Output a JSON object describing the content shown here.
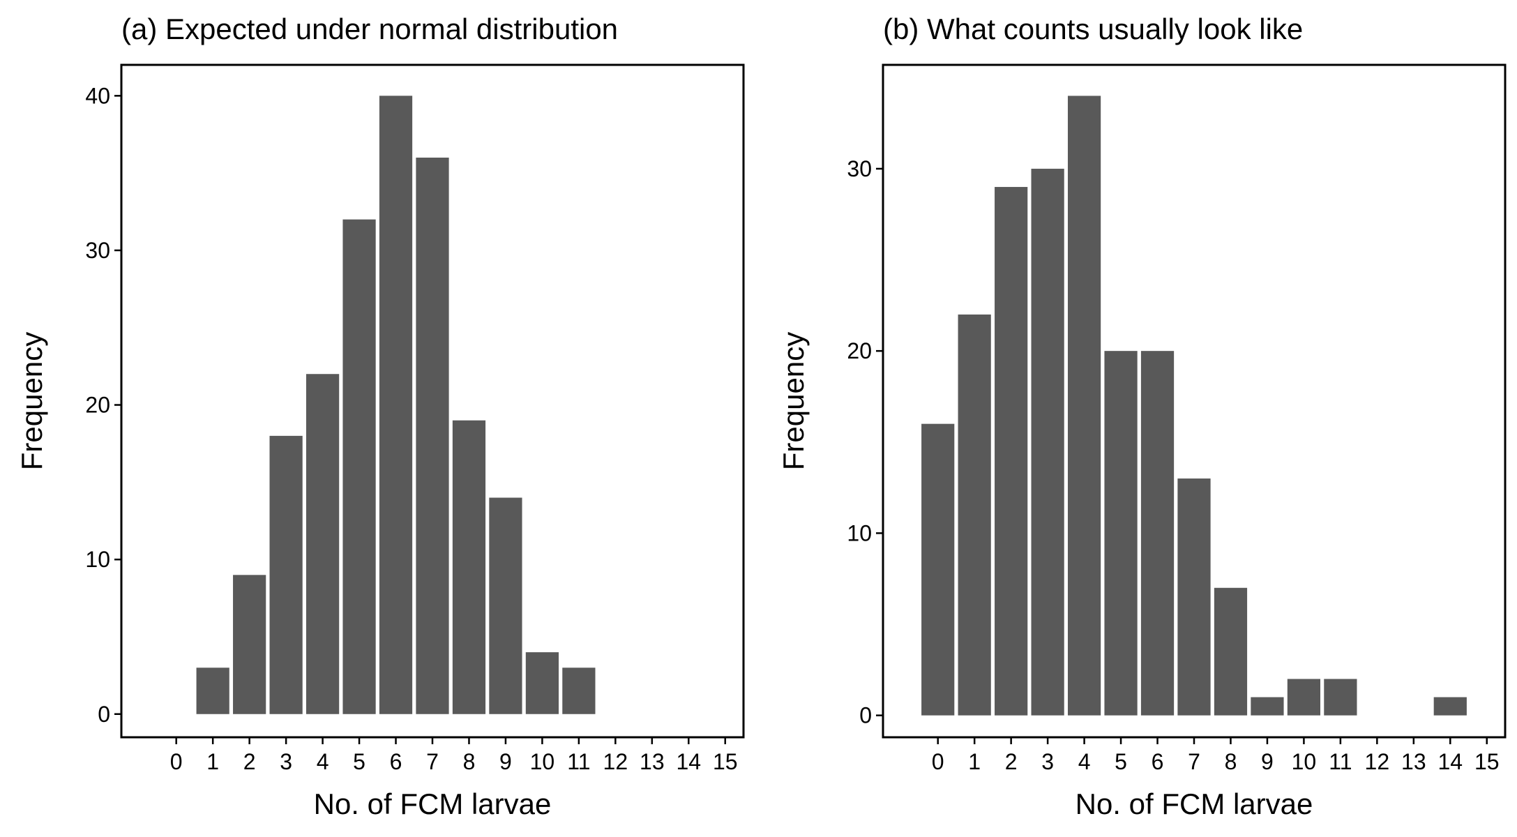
{
  "colors": {
    "bar": "#595959",
    "frame": "#000000",
    "background": "#ffffff"
  },
  "chart_data": [
    {
      "type": "bar",
      "title": "(a) Expected under normal distribution",
      "xlabel": "No. of FCM larvae",
      "ylabel": "Frequency",
      "categories": [
        "0",
        "1",
        "2",
        "3",
        "4",
        "5",
        "6",
        "7",
        "8",
        "9",
        "10",
        "11",
        "12",
        "13",
        "14",
        "15"
      ],
      "values": [
        0,
        3,
        9,
        18,
        22,
        32,
        40,
        36,
        19,
        14,
        4,
        3,
        0,
        0,
        0,
        0
      ],
      "yticks": [
        0,
        10,
        20,
        30,
        40
      ],
      "ylim": [
        -1.5,
        42
      ],
      "grid": false,
      "legend": "none"
    },
    {
      "type": "bar",
      "title": "(b) What counts usually look like",
      "xlabel": "No. of FCM larvae",
      "ylabel": "Frequency",
      "categories": [
        "0",
        "1",
        "2",
        "3",
        "4",
        "5",
        "6",
        "7",
        "8",
        "9",
        "10",
        "11",
        "12",
        "13",
        "14",
        "15"
      ],
      "values": [
        16,
        22,
        29,
        30,
        34,
        20,
        20,
        13,
        7,
        1,
        2,
        2,
        0,
        0,
        1,
        0
      ],
      "yticks": [
        0,
        10,
        20,
        30
      ],
      "ylim": [
        -1.2,
        35.7
      ],
      "grid": false,
      "legend": "none"
    }
  ]
}
